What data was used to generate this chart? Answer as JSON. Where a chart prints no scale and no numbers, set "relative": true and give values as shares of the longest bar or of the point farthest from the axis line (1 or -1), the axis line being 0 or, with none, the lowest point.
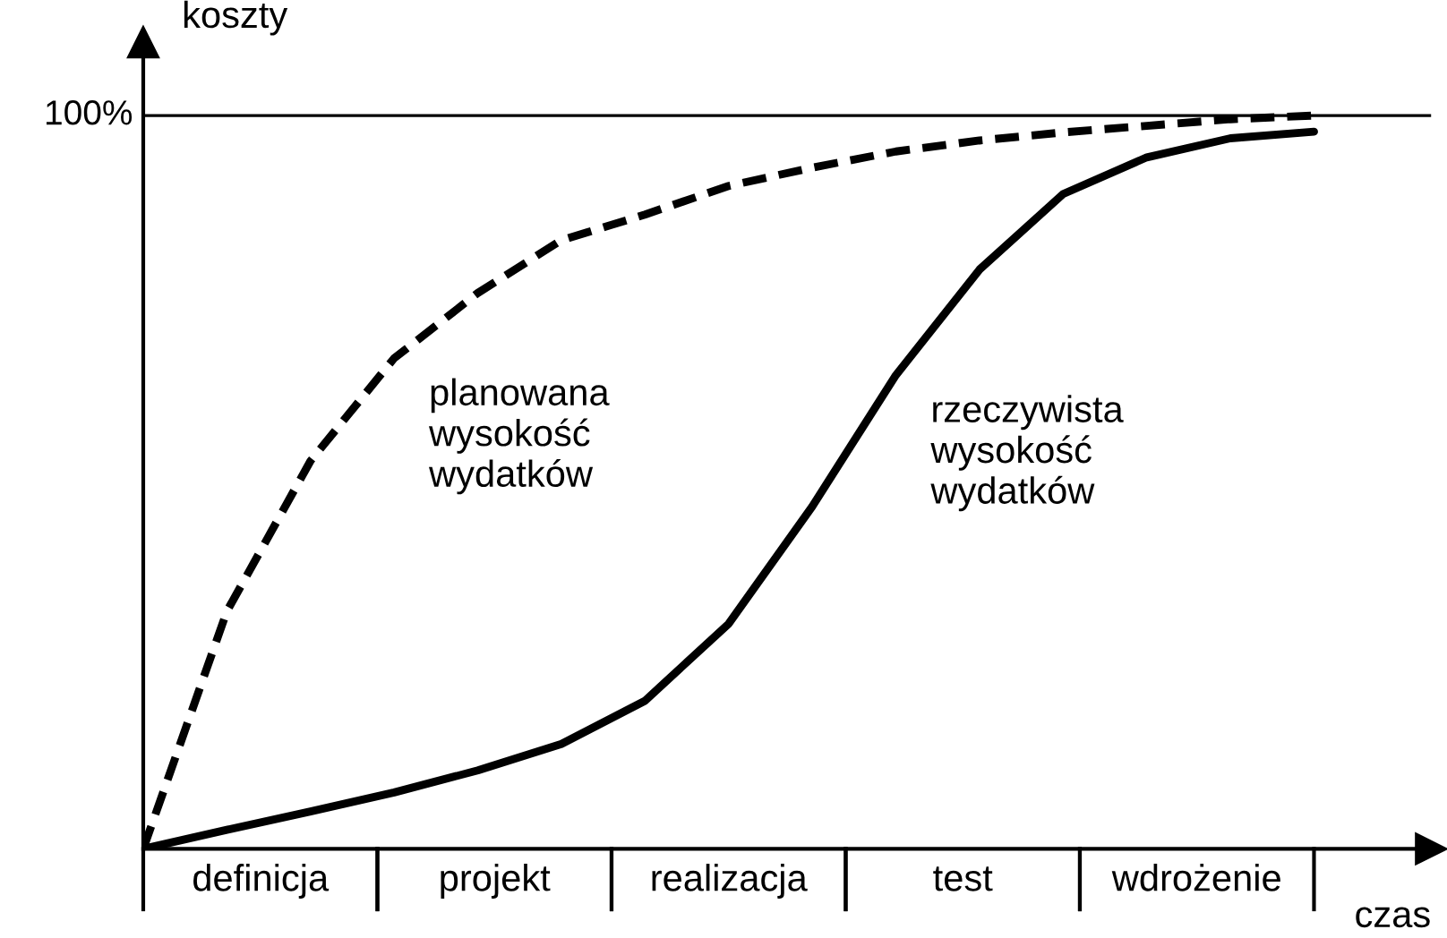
{
  "chart_data": {
    "type": "line",
    "relative": true,
    "xlabel": "czas",
    "ylabel": "koszty",
    "legend": false,
    "categories": [
      null,
      null,
      null,
      null,
      null,
      null,
      null,
      null,
      null,
      null,
      null,
      null,
      null,
      null,
      null
    ],
    "series": [
      {
        "name": "planowana\nwysokość\nwydatków",
        "color": "#000000",
        "line_style": "dashed",
        "values": [
          0.0,
          0.324,
          0.529,
          0.669,
          0.758,
          0.83,
          0.865,
          0.904,
          0.929,
          0.951,
          0.966,
          0.977,
          0.986,
          0.995,
          1.0
        ]
      },
      {
        "name": "rzeczywista\nwysokość\nwydatków",
        "color": "#000000",
        "line_style": "solid",
        "values": [
          0,
          0.026,
          0.051,
          0.077,
          0.107,
          0.143,
          0.202,
          0.307,
          0.467,
          0.646,
          0.79,
          0.893,
          0.943,
          0.969,
          0.978
        ]
      }
    ],
    "ref_lines": [
      {
        "axis": "y",
        "value": 1,
        "label": "100%",
        "color": "#000000",
        "line_style": "solid"
      }
    ],
    "annotations": [
      "definicja",
      "projekt",
      "realizacja",
      "test",
      "wdrożenie"
    ]
  }
}
